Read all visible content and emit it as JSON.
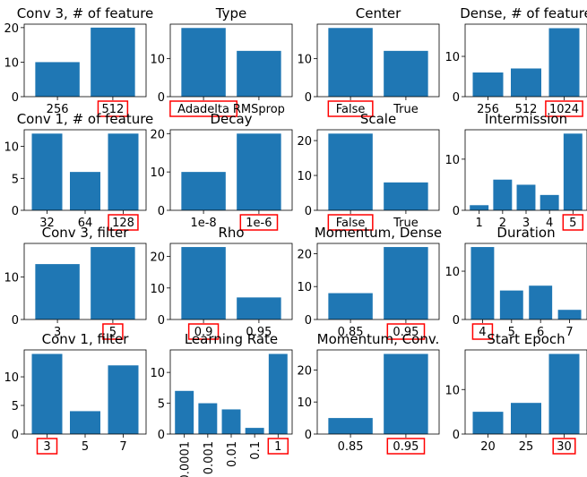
{
  "chart_data": [
    {
      "type": "bar",
      "title": "Conv 3, # of feature",
      "categories": [
        "256",
        "512"
      ],
      "values": [
        10,
        20
      ],
      "ylim": [
        0,
        21
      ],
      "yticks": [
        0,
        10,
        20
      ],
      "highlight": 1
    },
    {
      "type": "bar",
      "title": "Type",
      "categories": [
        "Adadelta",
        "RMSprop"
      ],
      "values": [
        18,
        12
      ],
      "ylim": [
        0,
        19
      ],
      "yticks": [
        0,
        10
      ],
      "highlight": 0
    },
    {
      "type": "bar",
      "title": "Center",
      "categories": [
        "False",
        "True"
      ],
      "values": [
        18,
        12
      ],
      "ylim": [
        0,
        19
      ],
      "yticks": [
        0,
        10
      ],
      "highlight": 0
    },
    {
      "type": "bar",
      "title": "Dense, # of feature",
      "categories": [
        "256",
        "512",
        "1024"
      ],
      "values": [
        6,
        7,
        17
      ],
      "ylim": [
        0,
        18
      ],
      "yticks": [
        0,
        10
      ],
      "highlight": 2
    },
    {
      "type": "bar",
      "title": "Conv 1, # of feature",
      "categories": [
        "32",
        "64",
        "128"
      ],
      "values": [
        12,
        6,
        12
      ],
      "ylim": [
        0,
        12.6
      ],
      "yticks": [
        0,
        5,
        10
      ],
      "highlight": 2
    },
    {
      "type": "bar",
      "title": "Decay",
      "categories": [
        "1e-8",
        "1e-6"
      ],
      "values": [
        10,
        20
      ],
      "ylim": [
        0,
        21
      ],
      "yticks": [
        0,
        10,
        20
      ],
      "highlight": 1
    },
    {
      "type": "bar",
      "title": "Scale",
      "categories": [
        "False",
        "True"
      ],
      "values": [
        22,
        8
      ],
      "ylim": [
        0,
        23.1
      ],
      "yticks": [
        0,
        10,
        20
      ],
      "highlight": 0
    },
    {
      "type": "bar",
      "title": "Intermission",
      "categories": [
        "1",
        "2",
        "3",
        "4",
        "5"
      ],
      "values": [
        1,
        6,
        5,
        3,
        15
      ],
      "ylim": [
        0,
        15.75
      ],
      "yticks": [
        0,
        10
      ],
      "highlight": 4
    },
    {
      "type": "bar",
      "title": "Conv 3, filter",
      "categories": [
        "3",
        "5"
      ],
      "values": [
        13,
        17
      ],
      "ylim": [
        0,
        17.85
      ],
      "yticks": [
        0,
        10
      ],
      "highlight": 1
    },
    {
      "type": "bar",
      "title": "Rho",
      "categories": [
        "0.9",
        "0.95"
      ],
      "values": [
        23,
        7
      ],
      "ylim": [
        0,
        24.15
      ],
      "yticks": [
        0,
        10,
        20
      ],
      "highlight": 0
    },
    {
      "type": "bar",
      "title": "Momentum, Dense",
      "categories": [
        "0.85",
        "0.95"
      ],
      "values": [
        8,
        22
      ],
      "ylim": [
        0,
        23.1
      ],
      "yticks": [
        0,
        10,
        20
      ],
      "highlight": 1
    },
    {
      "type": "bar",
      "title": "Duration",
      "categories": [
        "4",
        "5",
        "6",
        "7"
      ],
      "values": [
        15,
        6,
        7,
        2
      ],
      "ylim": [
        0,
        15.75
      ],
      "yticks": [
        0,
        10
      ],
      "highlight": 0
    },
    {
      "type": "bar",
      "title": "Conv 1, filter",
      "categories": [
        "3",
        "5",
        "7"
      ],
      "values": [
        14,
        4,
        12
      ],
      "ylim": [
        0,
        14.7
      ],
      "yticks": [
        0,
        5,
        10
      ],
      "highlight": 0
    },
    {
      "type": "bar",
      "title": "Learning Rate",
      "categories": [
        "0.0001",
        "0.001",
        "0.01",
        "0.1",
        "1"
      ],
      "values": [
        7,
        5,
        4,
        1,
        13
      ],
      "ylim": [
        0,
        13.65
      ],
      "yticks": [
        0,
        5,
        10
      ],
      "highlight": 4,
      "rotate_labels": true
    },
    {
      "type": "bar",
      "title": "Momentum, Conv.",
      "categories": [
        "0.85",
        "0.95"
      ],
      "values": [
        5,
        25
      ],
      "ylim": [
        0,
        26.25
      ],
      "yticks": [
        0,
        10,
        20
      ],
      "highlight": 1
    },
    {
      "type": "bar",
      "title": "Start Epoch",
      "categories": [
        "20",
        "25",
        "30"
      ],
      "values": [
        5,
        7,
        18
      ],
      "ylim": [
        0,
        18.9
      ],
      "yticks": [
        0,
        10
      ],
      "highlight": 2
    }
  ],
  "colors": {
    "bar": "#1f77b4",
    "highlight_box": "#ff0000",
    "axis": "#000000"
  }
}
